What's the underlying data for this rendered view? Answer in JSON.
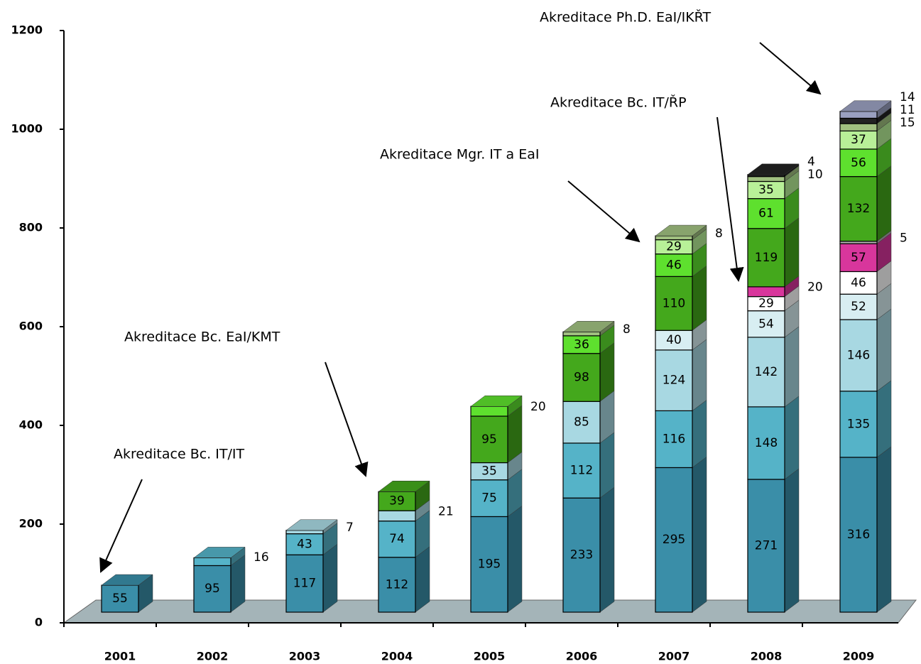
{
  "chart_data": {
    "type": "bar3d_stacked",
    "categories": [
      "2001",
      "2002",
      "2003",
      "2004",
      "2005",
      "2006",
      "2007",
      "2008",
      "2009"
    ],
    "series": [
      {
        "color": "#3a8ea8",
        "values": [
          55,
          95,
          117,
          112,
          195,
          233,
          295,
          271,
          316
        ]
      },
      {
        "color": "#55b3c8",
        "values": [
          null,
          16,
          43,
          74,
          75,
          112,
          116,
          148,
          135
        ]
      },
      {
        "color": "#a8d8e2",
        "values": [
          null,
          null,
          7,
          21,
          35,
          85,
          124,
          142,
          146
        ]
      },
      {
        "color": "#d8eef2",
        "values": [
          null,
          null,
          null,
          null,
          null,
          null,
          40,
          54,
          52
        ]
      },
      {
        "color": "#ffffff",
        "values": [
          null,
          null,
          null,
          null,
          null,
          null,
          null,
          29,
          46
        ]
      },
      {
        "color": "#d8369c",
        "values": [
          null,
          null,
          null,
          null,
          null,
          null,
          null,
          20,
          57
        ]
      },
      {
        "color": "#b0b0b0",
        "values": [
          null,
          null,
          null,
          null,
          null,
          null,
          null,
          null,
          5
        ]
      },
      {
        "color": "#44a81c",
        "values": [
          null,
          null,
          null,
          39,
          95,
          98,
          110,
          119,
          132
        ]
      },
      {
        "color": "#5ee02e",
        "values": [
          null,
          null,
          null,
          null,
          20,
          36,
          46,
          61,
          56
        ]
      },
      {
        "color": "#b8f098",
        "values": [
          null,
          null,
          null,
          null,
          null,
          null,
          29,
          35,
          37
        ]
      },
      {
        "color": "#a0c080",
        "values": [
          null,
          null,
          null,
          null,
          null,
          8,
          8,
          10,
          15
        ]
      },
      {
        "color": "#222222",
        "values": [
          null,
          null,
          null,
          null,
          null,
          null,
          null,
          4,
          11
        ]
      },
      {
        "color": "#9aa0c0",
        "values": [
          null,
          null,
          null,
          null,
          null,
          null,
          null,
          null,
          14
        ]
      }
    ],
    "ylim": [
      0,
      1200
    ],
    "yticks": [
      0,
      200,
      400,
      600,
      800,
      1000,
      1200
    ],
    "annotations": [
      "Akreditace Bc. IT/IT",
      "Akreditace Bc. EaI/KMT",
      "Akreditace Mgr. IT a EaI",
      "Akreditace Bc. IT/ŘP",
      "Akreditace Ph.D. EaI/IKŘT"
    ]
  }
}
